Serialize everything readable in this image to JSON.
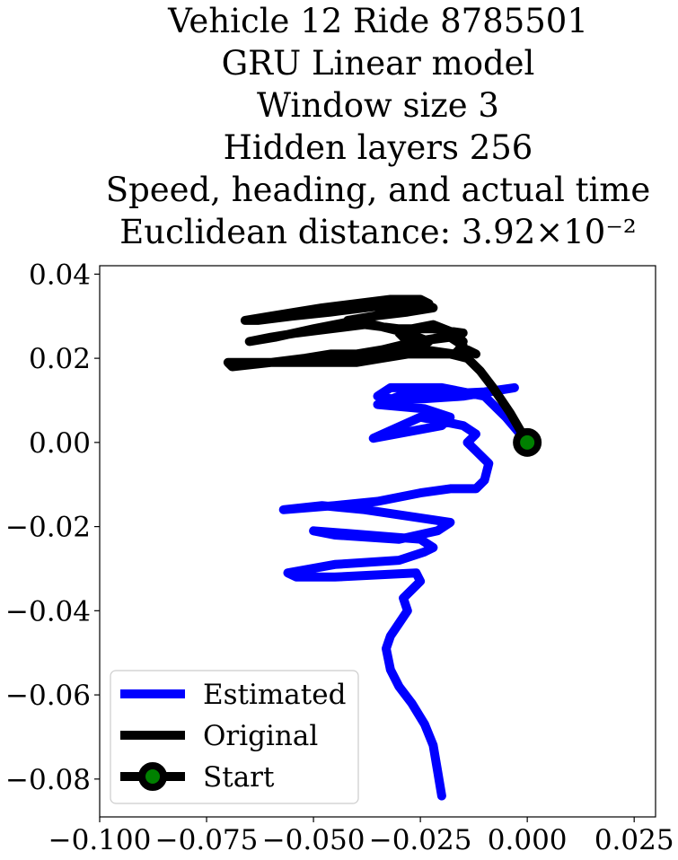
{
  "chart_data": {
    "type": "line",
    "title_lines": [
      "Vehicle 12 Ride 8785501",
      "GRU Linear model",
      "Window size 3",
      "Hidden layers 256",
      "Speed, heading, and actual time",
      "Euclidean distance: 3.92×10⁻²"
    ],
    "xlim": [
      -0.1,
      0.03
    ],
    "ylim": [
      -0.089,
      0.042
    ],
    "xticks": [
      {
        "value": -0.1,
        "label": "−0.100"
      },
      {
        "value": -0.075,
        "label": "−0.075"
      },
      {
        "value": -0.05,
        "label": "−0.050"
      },
      {
        "value": -0.025,
        "label": "−0.025"
      },
      {
        "value": 0.0,
        "label": "0.000"
      },
      {
        "value": 0.025,
        "label": "0.025"
      }
    ],
    "yticks": [
      {
        "value": 0.04,
        "label": "0.04"
      },
      {
        "value": 0.02,
        "label": "0.02"
      },
      {
        "value": 0.0,
        "label": "0.00"
      },
      {
        "value": -0.02,
        "label": "−0.02"
      },
      {
        "value": -0.04,
        "label": "−0.04"
      },
      {
        "value": -0.06,
        "label": "−0.06"
      },
      {
        "value": -0.08,
        "label": "−0.08"
      }
    ],
    "grid": false,
    "legend_position": "lower-left",
    "series": [
      {
        "name": "Estimated",
        "color": "#0000ff",
        "x": [
          -0.02,
          -0.021,
          -0.022,
          -0.024,
          -0.027,
          -0.03,
          -0.032,
          -0.033,
          -0.032,
          -0.03,
          -0.028,
          -0.029,
          -0.027,
          -0.025,
          -0.026,
          -0.045,
          -0.054,
          -0.056,
          -0.045,
          -0.03,
          -0.024,
          -0.022,
          -0.025,
          -0.05,
          -0.045,
          -0.03,
          -0.021,
          -0.018,
          -0.038,
          -0.048,
          -0.057,
          -0.045,
          -0.035,
          -0.025,
          -0.018,
          -0.012,
          -0.01,
          -0.009,
          -0.012,
          -0.014,
          -0.012,
          -0.015,
          -0.025,
          -0.036,
          -0.02,
          -0.018,
          -0.024,
          -0.035,
          -0.03,
          -0.01,
          -0.003,
          -0.015,
          -0.03,
          -0.035,
          -0.032,
          -0.02,
          -0.01,
          -0.005,
          0.0
        ],
        "y": [
          -0.084,
          -0.078,
          -0.072,
          -0.067,
          -0.062,
          -0.058,
          -0.054,
          -0.049,
          -0.046,
          -0.043,
          -0.04,
          -0.037,
          -0.035,
          -0.033,
          -0.031,
          -0.032,
          -0.032,
          -0.031,
          -0.029,
          -0.028,
          -0.026,
          -0.025,
          -0.023,
          -0.021,
          -0.022,
          -0.023,
          -0.021,
          -0.019,
          -0.016,
          -0.015,
          -0.016,
          -0.015,
          -0.014,
          -0.012,
          -0.011,
          -0.011,
          -0.009,
          -0.005,
          -0.002,
          0.0,
          0.002,
          0.004,
          0.006,
          0.001,
          0.004,
          0.006,
          0.008,
          0.009,
          0.011,
          0.012,
          0.013,
          0.011,
          0.01,
          0.011,
          0.013,
          0.013,
          0.011,
          0.006,
          0.0
        ]
      },
      {
        "name": "Original",
        "color": "#000000",
        "x": [
          0.0,
          -0.004,
          -0.008,
          -0.011,
          -0.014,
          -0.018,
          -0.022,
          -0.028,
          -0.034,
          -0.04,
          -0.048,
          -0.056,
          -0.064,
          -0.07,
          -0.069,
          -0.06,
          -0.052,
          -0.046,
          -0.04,
          -0.034,
          -0.03,
          -0.026,
          -0.02,
          -0.015,
          -0.022,
          -0.03,
          -0.038,
          -0.046,
          -0.054,
          -0.06,
          -0.065,
          -0.059,
          -0.05,
          -0.04,
          -0.032,
          -0.026,
          -0.023,
          -0.025,
          -0.032,
          -0.04,
          -0.048,
          -0.054,
          -0.06,
          -0.066,
          -0.063,
          -0.055,
          -0.046,
          -0.038,
          -0.03,
          -0.024,
          -0.022,
          -0.028,
          -0.036,
          -0.042,
          -0.036,
          -0.028,
          -0.023,
          -0.026,
          -0.034,
          -0.042,
          -0.048,
          -0.04,
          -0.032,
          -0.026,
          -0.018,
          -0.015,
          -0.017,
          -0.024,
          -0.028,
          -0.03,
          -0.027,
          -0.022,
          -0.017,
          -0.015,
          -0.016,
          -0.014,
          -0.012
        ],
        "y": [
          0.0,
          0.007,
          0.013,
          0.017,
          0.02,
          0.021,
          0.021,
          0.021,
          0.02,
          0.019,
          0.019,
          0.019,
          0.019,
          0.019,
          0.018,
          0.019,
          0.02,
          0.021,
          0.021,
          0.022,
          0.023,
          0.024,
          0.025,
          0.026,
          0.027,
          0.027,
          0.028,
          0.027,
          0.026,
          0.025,
          0.024,
          0.025,
          0.027,
          0.029,
          0.031,
          0.032,
          0.033,
          0.034,
          0.034,
          0.033,
          0.032,
          0.031,
          0.03,
          0.029,
          0.029,
          0.03,
          0.031,
          0.032,
          0.033,
          0.033,
          0.032,
          0.031,
          0.03,
          0.029,
          0.028,
          0.026,
          0.024,
          0.022,
          0.021,
          0.02,
          0.019,
          0.02,
          0.022,
          0.024,
          0.025,
          0.023,
          0.021,
          0.022,
          0.024,
          0.026,
          0.027,
          0.028,
          0.026,
          0.024,
          0.022,
          0.022,
          0.021
        ]
      }
    ],
    "start_point": {
      "name": "Start",
      "x": 0.0,
      "y": 0.0,
      "ring_color": "#000000",
      "fill_color": "#008000"
    },
    "legend": [
      "Estimated",
      "Original",
      "Start"
    ]
  }
}
